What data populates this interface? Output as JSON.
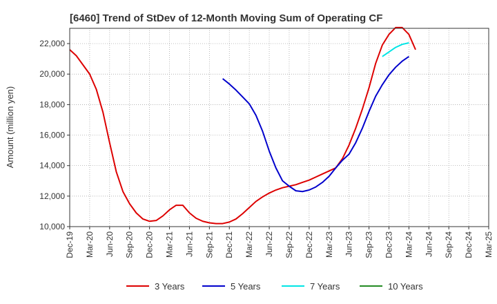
{
  "chart_data": {
    "type": "line",
    "title": "[6460]  Trend of StDev of 12-Month Moving Sum of Operating CF",
    "ylabel": "Amount (million yen)",
    "xlabel": "",
    "ylim": [
      10000,
      23000
    ],
    "yticks": [
      10000,
      12000,
      14000,
      16000,
      18000,
      20000,
      22000
    ],
    "ytick_labels": [
      "10,000",
      "12,000",
      "14,000",
      "16,000",
      "18,000",
      "20,000",
      "22,000"
    ],
    "x_start": "Dec-19",
    "x_end": "Mar-25",
    "x_tick_labels": [
      "Dec-19",
      "Mar-20",
      "Jun-20",
      "Sep-20",
      "Dec-20",
      "Mar-21",
      "Jun-21",
      "Sep-21",
      "Dec-21",
      "Mar-22",
      "Jun-22",
      "Sep-22",
      "Dec-22",
      "Mar-23",
      "Jun-23",
      "Sep-23",
      "Dec-23",
      "Mar-24",
      "Jun-24",
      "Sep-24",
      "Dec-24",
      "Mar-25"
    ],
    "grid": true,
    "legend_position": "bottom",
    "series": [
      {
        "name": "3 Years",
        "color": "#dd0000",
        "start": "Dec-19",
        "values": [
          21600,
          21200,
          20600,
          20000,
          19000,
          17500,
          15500,
          13600,
          12300,
          11500,
          10900,
          10500,
          10350,
          10400,
          10700,
          11100,
          11400,
          11400,
          10900,
          10550,
          10350,
          10250,
          10200,
          10200,
          10300,
          10500,
          10850,
          11250,
          11650,
          11950,
          12200,
          12400,
          12550,
          12650,
          12750,
          12900,
          13050,
          13250,
          13450,
          13650,
          13850,
          14450,
          15350,
          16450,
          17700,
          19100,
          20700,
          21900,
          22600,
          23050,
          23050,
          22600,
          21600
        ]
      },
      {
        "name": "5 Years",
        "color": "#0000cc",
        "start": "Nov-21",
        "values": [
          19700,
          19350,
          18950,
          18500,
          18050,
          17300,
          16250,
          14950,
          13850,
          13000,
          12650,
          12350,
          12300,
          12400,
          12600,
          12900,
          13300,
          13850,
          14350,
          14750,
          15500,
          16450,
          17550,
          18550,
          19300,
          19950,
          20450,
          20850,
          21150
        ]
      },
      {
        "name": "7 Years",
        "color": "#00e5e5",
        "start": "Nov-23",
        "values": [
          21150,
          21450,
          21750,
          21950,
          22050
        ]
      },
      {
        "name": "10 Years",
        "color": "#228b22",
        "start": "",
        "values": []
      }
    ]
  }
}
